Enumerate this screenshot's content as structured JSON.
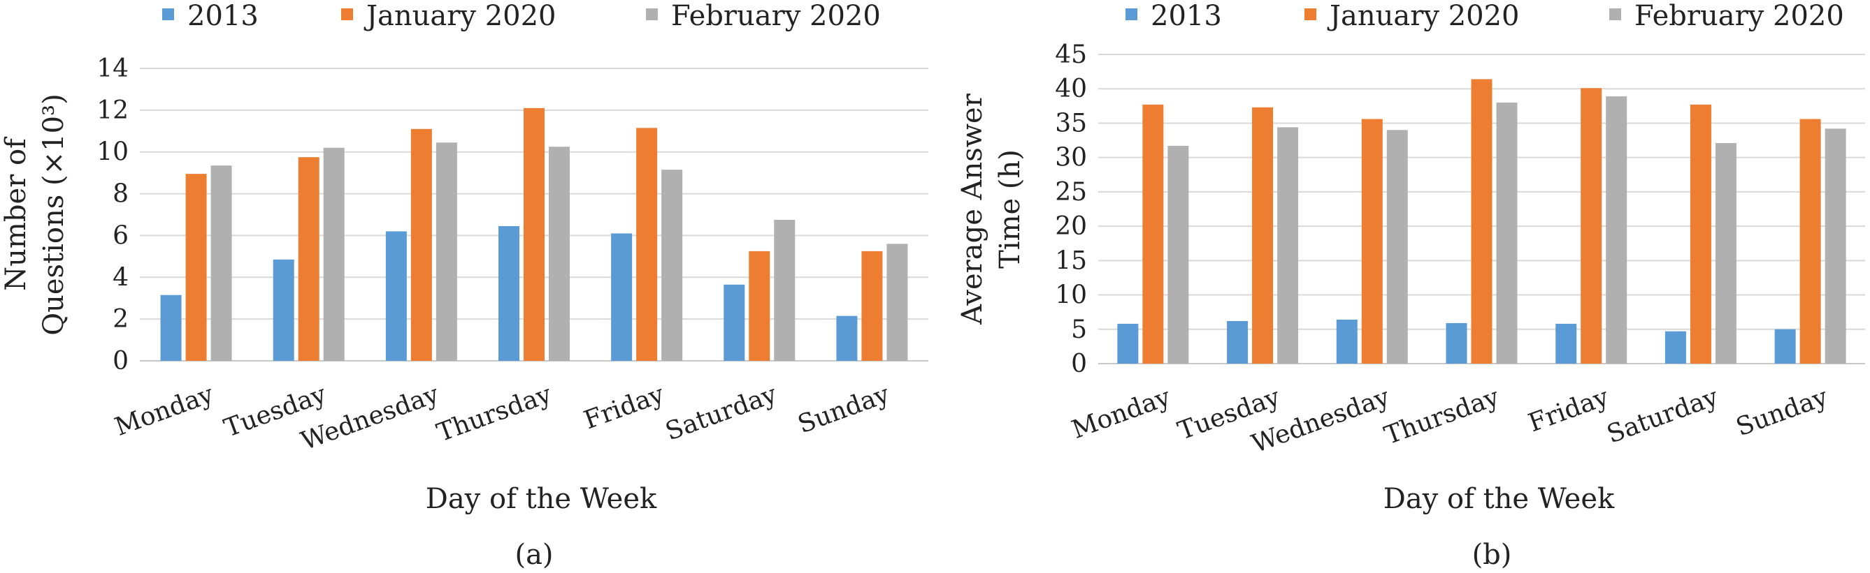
{
  "chart_data": [
    {
      "type": "bar",
      "caption": "(a)",
      "xlabel": "Day of the Week",
      "ylabel_lines": [
        "Number of",
        "Questions (×10³)"
      ],
      "ylim": [
        0,
        14
      ],
      "yticks": [
        0,
        2,
        4,
        6,
        8,
        10,
        12,
        14
      ],
      "grid": true,
      "legend_position": "top",
      "categories": [
        "Monday",
        "Tuesday",
        "Wednesday",
        "Thursday",
        "Friday",
        "Saturday",
        "Sunday"
      ],
      "series": [
        {
          "name": "2013",
          "color": "#5b9bd5",
          "values": [
            3.15,
            4.85,
            6.2,
            6.45,
            6.1,
            3.65,
            2.15
          ]
        },
        {
          "name": "January 2020",
          "color": "#ed7d31",
          "values": [
            8.95,
            9.75,
            11.1,
            12.1,
            11.15,
            5.25,
            5.25
          ]
        },
        {
          "name": "February 2020",
          "color": "#b0b0b0",
          "values": [
            9.35,
            10.2,
            10.45,
            10.25,
            9.15,
            6.75,
            5.6
          ]
        }
      ]
    },
    {
      "type": "bar",
      "caption": "(b)",
      "xlabel": "Day of the Week",
      "ylabel_lines": [
        "Average Answer",
        "Time (h)"
      ],
      "ylim": [
        0,
        45
      ],
      "yticks": [
        0,
        5,
        10,
        15,
        20,
        25,
        30,
        35,
        40,
        45
      ],
      "grid": true,
      "legend_position": "top",
      "categories": [
        "Monday",
        "Tuesday",
        "Wednesday",
        "Thursday",
        "Friday",
        "Saturday",
        "Sunday"
      ],
      "series": [
        {
          "name": "2013",
          "color": "#5b9bd5",
          "values": [
            5.8,
            6.2,
            6.4,
            5.9,
            5.8,
            4.7,
            5.0
          ]
        },
        {
          "name": "January 2020",
          "color": "#ed7d31",
          "values": [
            37.7,
            37.3,
            35.6,
            41.4,
            40.1,
            37.7,
            35.6
          ]
        },
        {
          "name": "February 2020",
          "color": "#b0b0b0",
          "values": [
            31.7,
            34.4,
            34.0,
            38.0,
            38.9,
            32.1,
            34.2
          ]
        }
      ]
    }
  ]
}
